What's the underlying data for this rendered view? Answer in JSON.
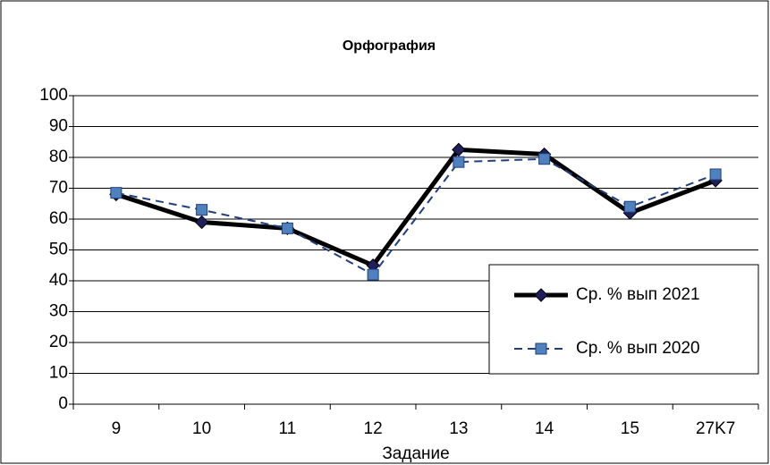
{
  "chart_data": {
    "type": "line",
    "title": "Орфография",
    "x_label": "Задание",
    "categories": [
      "9",
      "10",
      "11",
      "12",
      "13",
      "14",
      "15",
      "27K7"
    ],
    "series": [
      {
        "name": "Ср. % вып 2021",
        "color": "#000000",
        "marker": "diamond",
        "marker_color": "#1f1f5c",
        "dashed": false,
        "values": [
          68,
          59,
          57,
          45,
          82.5,
          81,
          62,
          72.5
        ]
      },
      {
        "name": "Ср. % вып 2020",
        "color": "#1f3f7f",
        "marker": "square",
        "marker_color": "#4f81bd",
        "dashed": true,
        "values": [
          68.5,
          63,
          57,
          42,
          78.5,
          79.5,
          64,
          74.5
        ]
      }
    ],
    "ylim": [
      0,
      100
    ],
    "yticks": [
      0,
      10,
      20,
      30,
      40,
      50,
      60,
      70,
      80,
      90,
      100
    ],
    "grid": true,
    "legend": "right"
  }
}
